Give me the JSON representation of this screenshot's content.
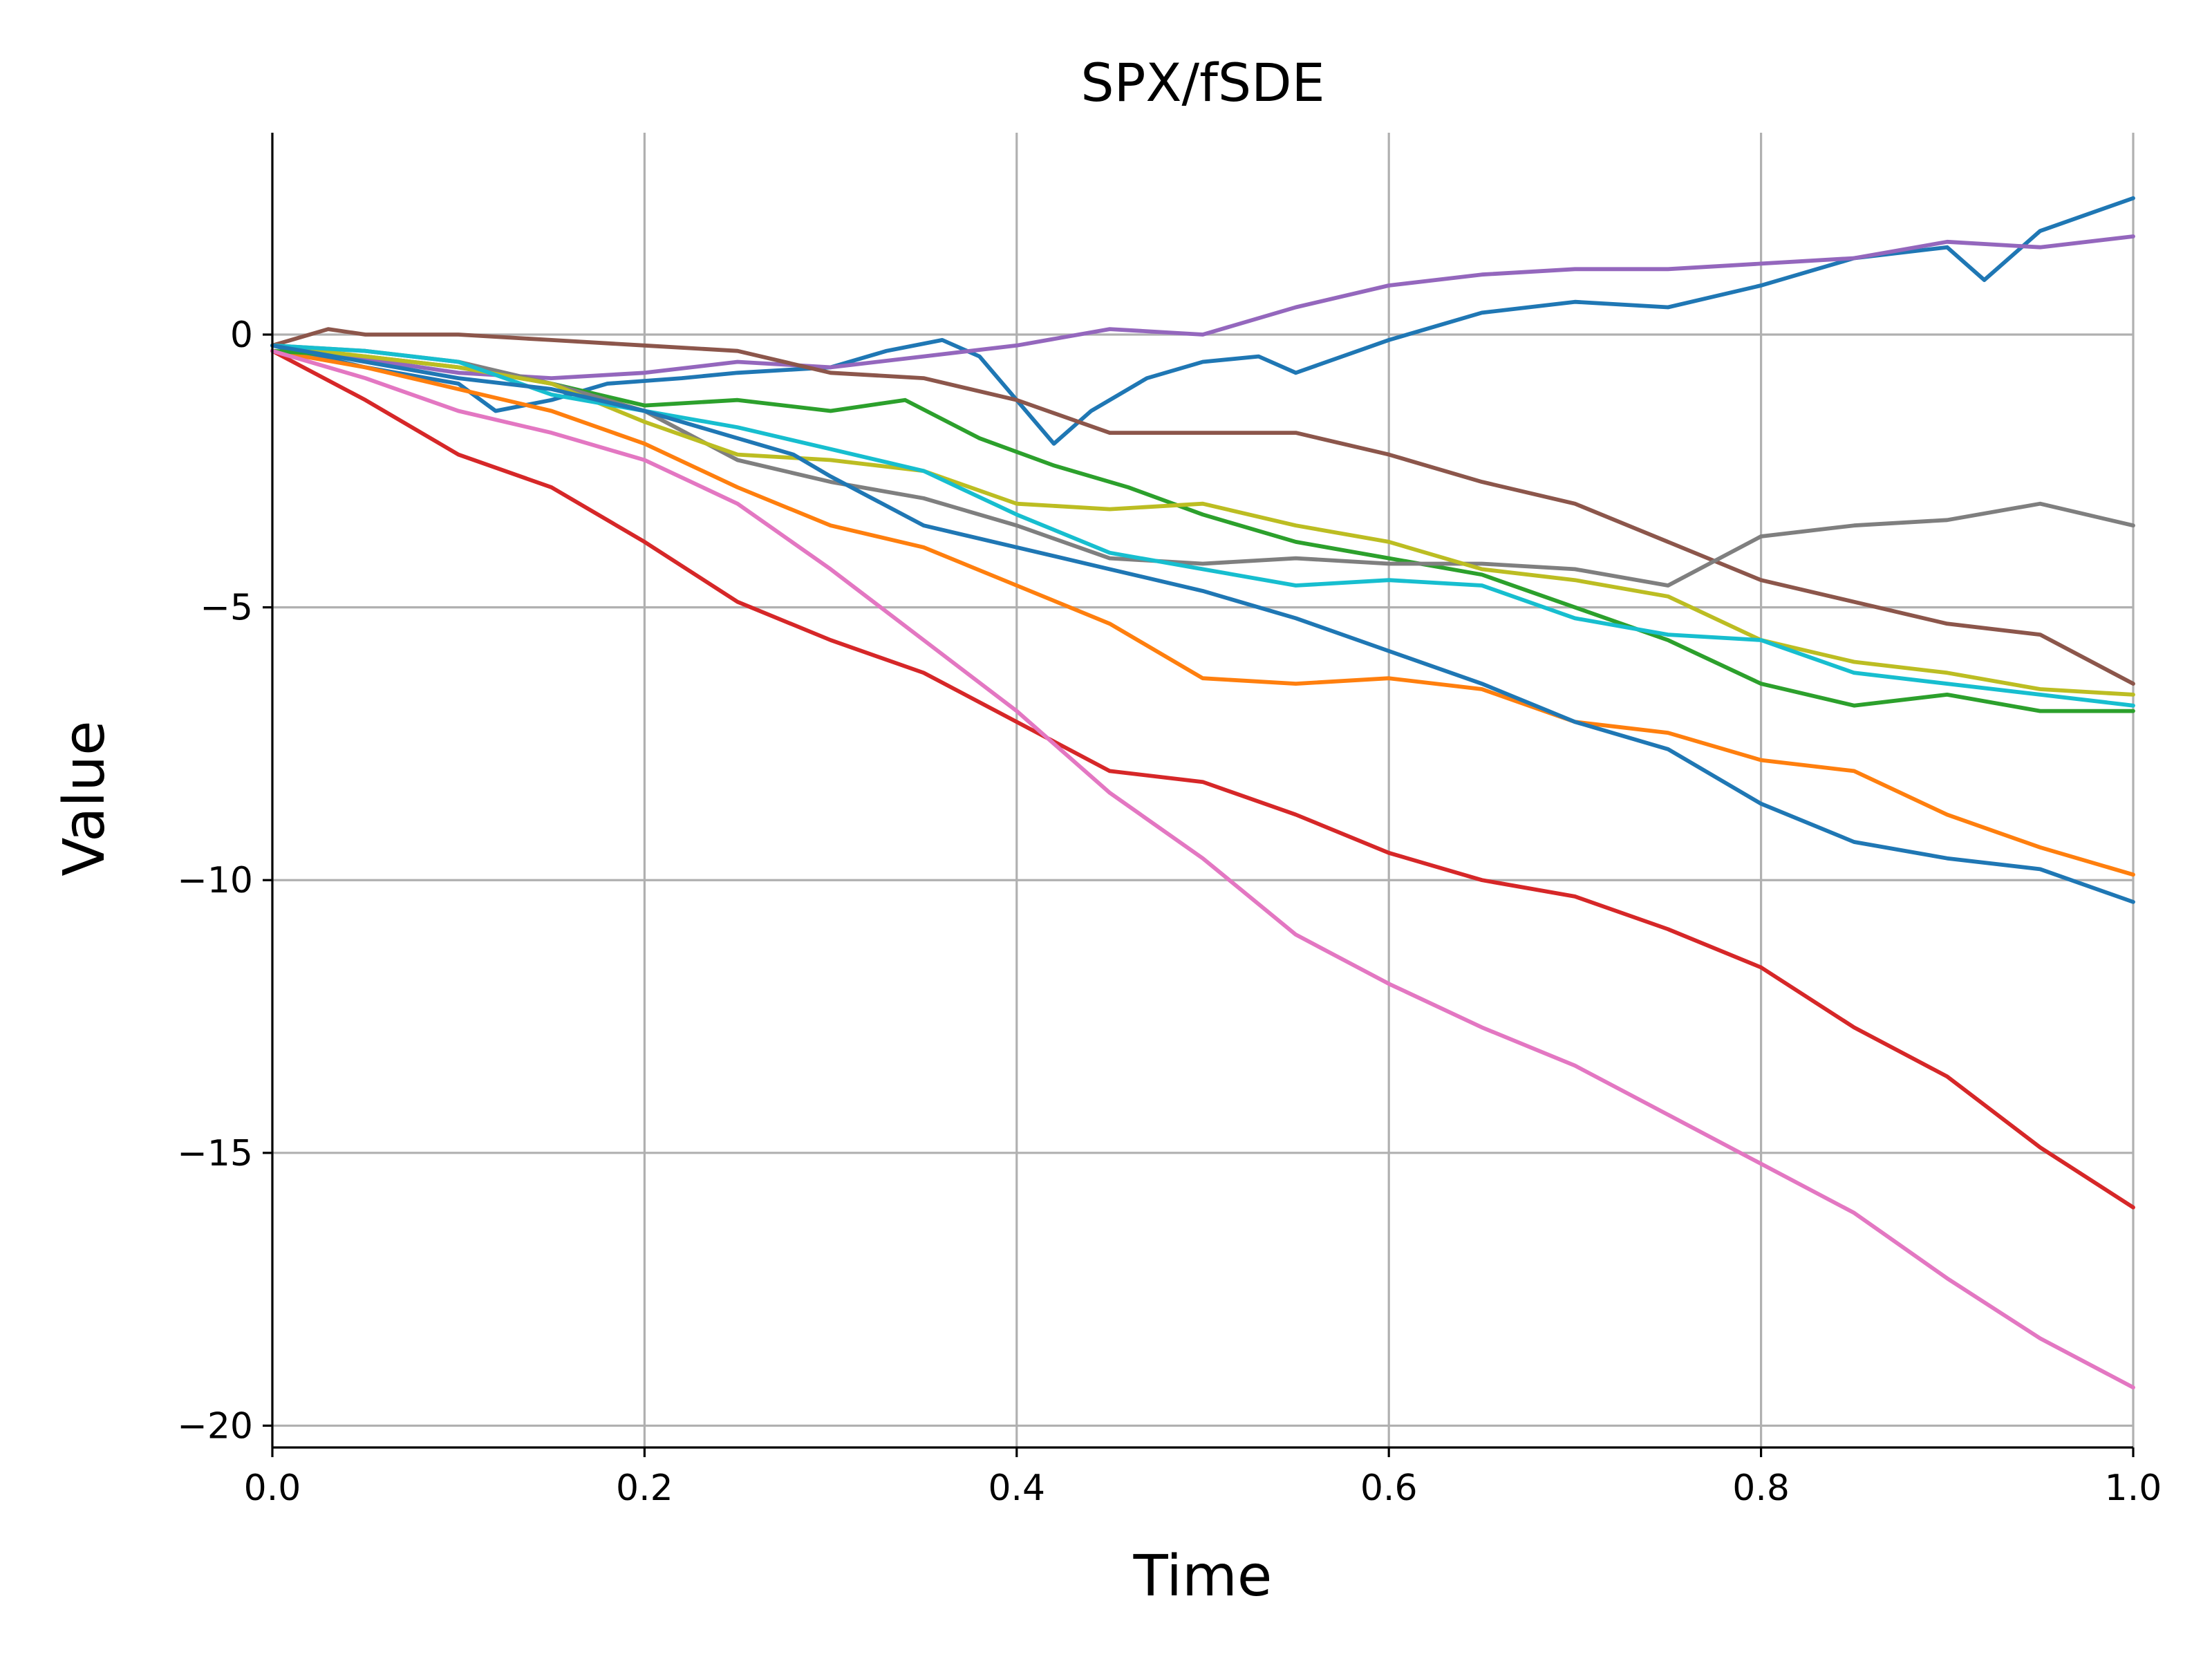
{
  "chart_data": {
    "type": "line",
    "title": "SPX/fSDE",
    "xlabel": "Time",
    "ylabel": "Value",
    "xlim": [
      0.0,
      1.0
    ],
    "ylim": [
      -20.4,
      3.7
    ],
    "xticks": [
      0.0,
      0.2,
      0.4,
      0.6,
      0.8,
      1.0
    ],
    "xtick_labels": [
      "0.0",
      "0.2",
      "0.4",
      "0.6",
      "0.8",
      "1.0"
    ],
    "yticks": [
      0,
      -5,
      -10,
      -15,
      -20
    ],
    "ytick_labels": [
      "0",
      "−5",
      "−10",
      "−15",
      "−20"
    ],
    "grid": true,
    "legend": "none",
    "series": [
      {
        "color": "#1f77b4",
        "points": [
          [
            0,
            -0.2
          ],
          [
            0.05,
            -0.6
          ],
          [
            0.1,
            -0.9
          ],
          [
            0.12,
            -1.4
          ],
          [
            0.15,
            -1.2
          ],
          [
            0.18,
            -0.9
          ],
          [
            0.22,
            -0.8
          ],
          [
            0.25,
            -0.7
          ],
          [
            0.3,
            -0.6
          ],
          [
            0.33,
            -0.3
          ],
          [
            0.36,
            -0.1
          ],
          [
            0.38,
            -0.4
          ],
          [
            0.4,
            -1.2
          ],
          [
            0.42,
            -2.0
          ],
          [
            0.44,
            -1.4
          ],
          [
            0.47,
            -0.8
          ],
          [
            0.5,
            -0.5
          ],
          [
            0.53,
            -0.4
          ],
          [
            0.55,
            -0.7
          ],
          [
            0.6,
            -0.1
          ],
          [
            0.65,
            0.4
          ],
          [
            0.7,
            0.6
          ],
          [
            0.75,
            0.5
          ],
          [
            0.8,
            0.9
          ],
          [
            0.85,
            1.4
          ],
          [
            0.9,
            1.6
          ],
          [
            0.92,
            1.0
          ],
          [
            0.95,
            1.9
          ],
          [
            1.0,
            2.5
          ]
        ]
      },
      {
        "color": "#ff7f0e",
        "points": [
          [
            0,
            -0.3
          ],
          [
            0.05,
            -0.6
          ],
          [
            0.1,
            -1.0
          ],
          [
            0.15,
            -1.4
          ],
          [
            0.2,
            -2.0
          ],
          [
            0.25,
            -2.8
          ],
          [
            0.3,
            -3.5
          ],
          [
            0.35,
            -3.9
          ],
          [
            0.4,
            -4.6
          ],
          [
            0.45,
            -5.3
          ],
          [
            0.5,
            -6.3
          ],
          [
            0.55,
            -6.4
          ],
          [
            0.6,
            -6.3
          ],
          [
            0.65,
            -6.5
          ],
          [
            0.7,
            -7.1
          ],
          [
            0.75,
            -7.3
          ],
          [
            0.8,
            -7.8
          ],
          [
            0.85,
            -8.0
          ],
          [
            0.9,
            -8.8
          ],
          [
            0.95,
            -9.4
          ],
          [
            1.0,
            -9.9
          ]
        ]
      },
      {
        "color": "#2ca02c",
        "points": [
          [
            0,
            -0.3
          ],
          [
            0.05,
            -0.4
          ],
          [
            0.1,
            -0.6
          ],
          [
            0.15,
            -0.9
          ],
          [
            0.2,
            -1.3
          ],
          [
            0.25,
            -1.2
          ],
          [
            0.3,
            -1.4
          ],
          [
            0.34,
            -1.2
          ],
          [
            0.38,
            -1.9
          ],
          [
            0.42,
            -2.4
          ],
          [
            0.46,
            -2.8
          ],
          [
            0.5,
            -3.3
          ],
          [
            0.55,
            -3.8
          ],
          [
            0.6,
            -4.1
          ],
          [
            0.65,
            -4.4
          ],
          [
            0.7,
            -5.0
          ],
          [
            0.75,
            -5.6
          ],
          [
            0.8,
            -6.4
          ],
          [
            0.85,
            -6.8
          ],
          [
            0.9,
            -6.6
          ],
          [
            0.95,
            -6.9
          ],
          [
            1.0,
            -6.9
          ]
        ]
      },
      {
        "color": "#d62728",
        "points": [
          [
            0,
            -0.3
          ],
          [
            0.05,
            -1.2
          ],
          [
            0.1,
            -2.2
          ],
          [
            0.15,
            -2.8
          ],
          [
            0.2,
            -3.8
          ],
          [
            0.25,
            -4.9
          ],
          [
            0.3,
            -5.6
          ],
          [
            0.35,
            -6.2
          ],
          [
            0.4,
            -7.1
          ],
          [
            0.45,
            -8.0
          ],
          [
            0.5,
            -8.2
          ],
          [
            0.55,
            -8.8
          ],
          [
            0.6,
            -9.5
          ],
          [
            0.65,
            -10.0
          ],
          [
            0.7,
            -10.3
          ],
          [
            0.75,
            -10.9
          ],
          [
            0.8,
            -11.6
          ],
          [
            0.85,
            -12.7
          ],
          [
            0.9,
            -13.6
          ],
          [
            0.95,
            -14.9
          ],
          [
            1.0,
            -16.0
          ]
        ]
      },
      {
        "color": "#9467bd",
        "points": [
          [
            0,
            -0.2
          ],
          [
            0.1,
            -0.7
          ],
          [
            0.15,
            -0.8
          ],
          [
            0.2,
            -0.7
          ],
          [
            0.25,
            -0.5
          ],
          [
            0.3,
            -0.6
          ],
          [
            0.35,
            -0.4
          ],
          [
            0.4,
            -0.2
          ],
          [
            0.45,
            0.1
          ],
          [
            0.5,
            0.0
          ],
          [
            0.55,
            0.5
          ],
          [
            0.6,
            0.9
          ],
          [
            0.65,
            1.1
          ],
          [
            0.7,
            1.2
          ],
          [
            0.75,
            1.2
          ],
          [
            0.8,
            1.3
          ],
          [
            0.85,
            1.4
          ],
          [
            0.9,
            1.7
          ],
          [
            0.95,
            1.6
          ],
          [
            1.0,
            1.8
          ]
        ]
      },
      {
        "color": "#8c564b",
        "points": [
          [
            0,
            -0.2
          ],
          [
            0.03,
            0.1
          ],
          [
            0.05,
            0.0
          ],
          [
            0.1,
            0.0
          ],
          [
            0.15,
            -0.1
          ],
          [
            0.2,
            -0.2
          ],
          [
            0.25,
            -0.3
          ],
          [
            0.3,
            -0.7
          ],
          [
            0.35,
            -0.8
          ],
          [
            0.4,
            -1.2
          ],
          [
            0.45,
            -1.8
          ],
          [
            0.5,
            -1.8
          ],
          [
            0.55,
            -1.8
          ],
          [
            0.6,
            -2.2
          ],
          [
            0.65,
            -2.7
          ],
          [
            0.7,
            -3.1
          ],
          [
            0.75,
            -3.8
          ],
          [
            0.8,
            -4.5
          ],
          [
            0.85,
            -4.9
          ],
          [
            0.9,
            -5.3
          ],
          [
            0.95,
            -5.5
          ],
          [
            1.0,
            -6.4
          ]
        ]
      },
      {
        "color": "#e377c2",
        "points": [
          [
            0,
            -0.3
          ],
          [
            0.05,
            -0.8
          ],
          [
            0.1,
            -1.4
          ],
          [
            0.15,
            -1.8
          ],
          [
            0.2,
            -2.3
          ],
          [
            0.25,
            -3.1
          ],
          [
            0.3,
            -4.3
          ],
          [
            0.35,
            -5.6
          ],
          [
            0.4,
            -6.9
          ],
          [
            0.45,
            -8.4
          ],
          [
            0.5,
            -9.6
          ],
          [
            0.55,
            -11.0
          ],
          [
            0.6,
            -11.9
          ],
          [
            0.65,
            -12.7
          ],
          [
            0.7,
            -13.4
          ],
          [
            0.75,
            -14.3
          ],
          [
            0.8,
            -15.2
          ],
          [
            0.85,
            -16.1
          ],
          [
            0.9,
            -17.3
          ],
          [
            0.95,
            -18.4
          ],
          [
            1.0,
            -19.3
          ]
        ]
      },
      {
        "color": "#7f7f7f",
        "points": [
          [
            0,
            -0.2
          ],
          [
            0.05,
            -0.3
          ],
          [
            0.1,
            -0.5
          ],
          [
            0.15,
            -0.9
          ],
          [
            0.2,
            -1.4
          ],
          [
            0.25,
            -2.3
          ],
          [
            0.3,
            -2.7
          ],
          [
            0.35,
            -3.0
          ],
          [
            0.4,
            -3.5
          ],
          [
            0.45,
            -4.1
          ],
          [
            0.5,
            -4.2
          ],
          [
            0.55,
            -4.1
          ],
          [
            0.6,
            -4.2
          ],
          [
            0.65,
            -4.2
          ],
          [
            0.7,
            -4.3
          ],
          [
            0.75,
            -4.6
          ],
          [
            0.8,
            -3.7
          ],
          [
            0.85,
            -3.5
          ],
          [
            0.9,
            -3.4
          ],
          [
            0.95,
            -3.1
          ],
          [
            1.0,
            -3.5
          ]
        ]
      },
      {
        "color": "#bcbd22",
        "points": [
          [
            0,
            -0.2
          ],
          [
            0.05,
            -0.4
          ],
          [
            0.1,
            -0.6
          ],
          [
            0.15,
            -0.9
          ],
          [
            0.2,
            -1.6
          ],
          [
            0.25,
            -2.2
          ],
          [
            0.3,
            -2.3
          ],
          [
            0.35,
            -2.5
          ],
          [
            0.4,
            -3.1
          ],
          [
            0.45,
            -3.2
          ],
          [
            0.5,
            -3.1
          ],
          [
            0.55,
            -3.5
          ],
          [
            0.6,
            -3.8
          ],
          [
            0.65,
            -4.3
          ],
          [
            0.7,
            -4.5
          ],
          [
            0.75,
            -4.8
          ],
          [
            0.8,
            -5.6
          ],
          [
            0.85,
            -6.0
          ],
          [
            0.9,
            -6.2
          ],
          [
            0.95,
            -6.5
          ],
          [
            1.0,
            -6.6
          ]
        ]
      },
      {
        "color": "#17becf",
        "points": [
          [
            0,
            -0.2
          ],
          [
            0.05,
            -0.3
          ],
          [
            0.1,
            -0.5
          ],
          [
            0.15,
            -1.1
          ],
          [
            0.2,
            -1.4
          ],
          [
            0.25,
            -1.7
          ],
          [
            0.3,
            -2.1
          ],
          [
            0.35,
            -2.5
          ],
          [
            0.4,
            -3.3
          ],
          [
            0.45,
            -4.0
          ],
          [
            0.5,
            -4.3
          ],
          [
            0.55,
            -4.6
          ],
          [
            0.6,
            -4.5
          ],
          [
            0.65,
            -4.6
          ],
          [
            0.7,
            -5.2
          ],
          [
            0.75,
            -5.5
          ],
          [
            0.8,
            -5.6
          ],
          [
            0.85,
            -6.2
          ],
          [
            0.9,
            -6.4
          ],
          [
            0.95,
            -6.6
          ],
          [
            1.0,
            -6.8
          ]
        ]
      },
      {
        "color": "#1f77b4",
        "points": [
          [
            0,
            -0.2
          ],
          [
            0.05,
            -0.5
          ],
          [
            0.1,
            -0.8
          ],
          [
            0.15,
            -1.0
          ],
          [
            0.2,
            -1.4
          ],
          [
            0.25,
            -1.9
          ],
          [
            0.28,
            -2.2
          ],
          [
            0.3,
            -2.6
          ],
          [
            0.35,
            -3.5
          ],
          [
            0.4,
            -3.9
          ],
          [
            0.45,
            -4.3
          ],
          [
            0.5,
            -4.7
          ],
          [
            0.55,
            -5.2
          ],
          [
            0.6,
            -5.8
          ],
          [
            0.65,
            -6.4
          ],
          [
            0.7,
            -7.1
          ],
          [
            0.75,
            -7.6
          ],
          [
            0.8,
            -8.6
          ],
          [
            0.85,
            -9.3
          ],
          [
            0.9,
            -9.6
          ],
          [
            0.95,
            -9.8
          ],
          [
            1.0,
            -10.4
          ]
        ]
      }
    ]
  }
}
